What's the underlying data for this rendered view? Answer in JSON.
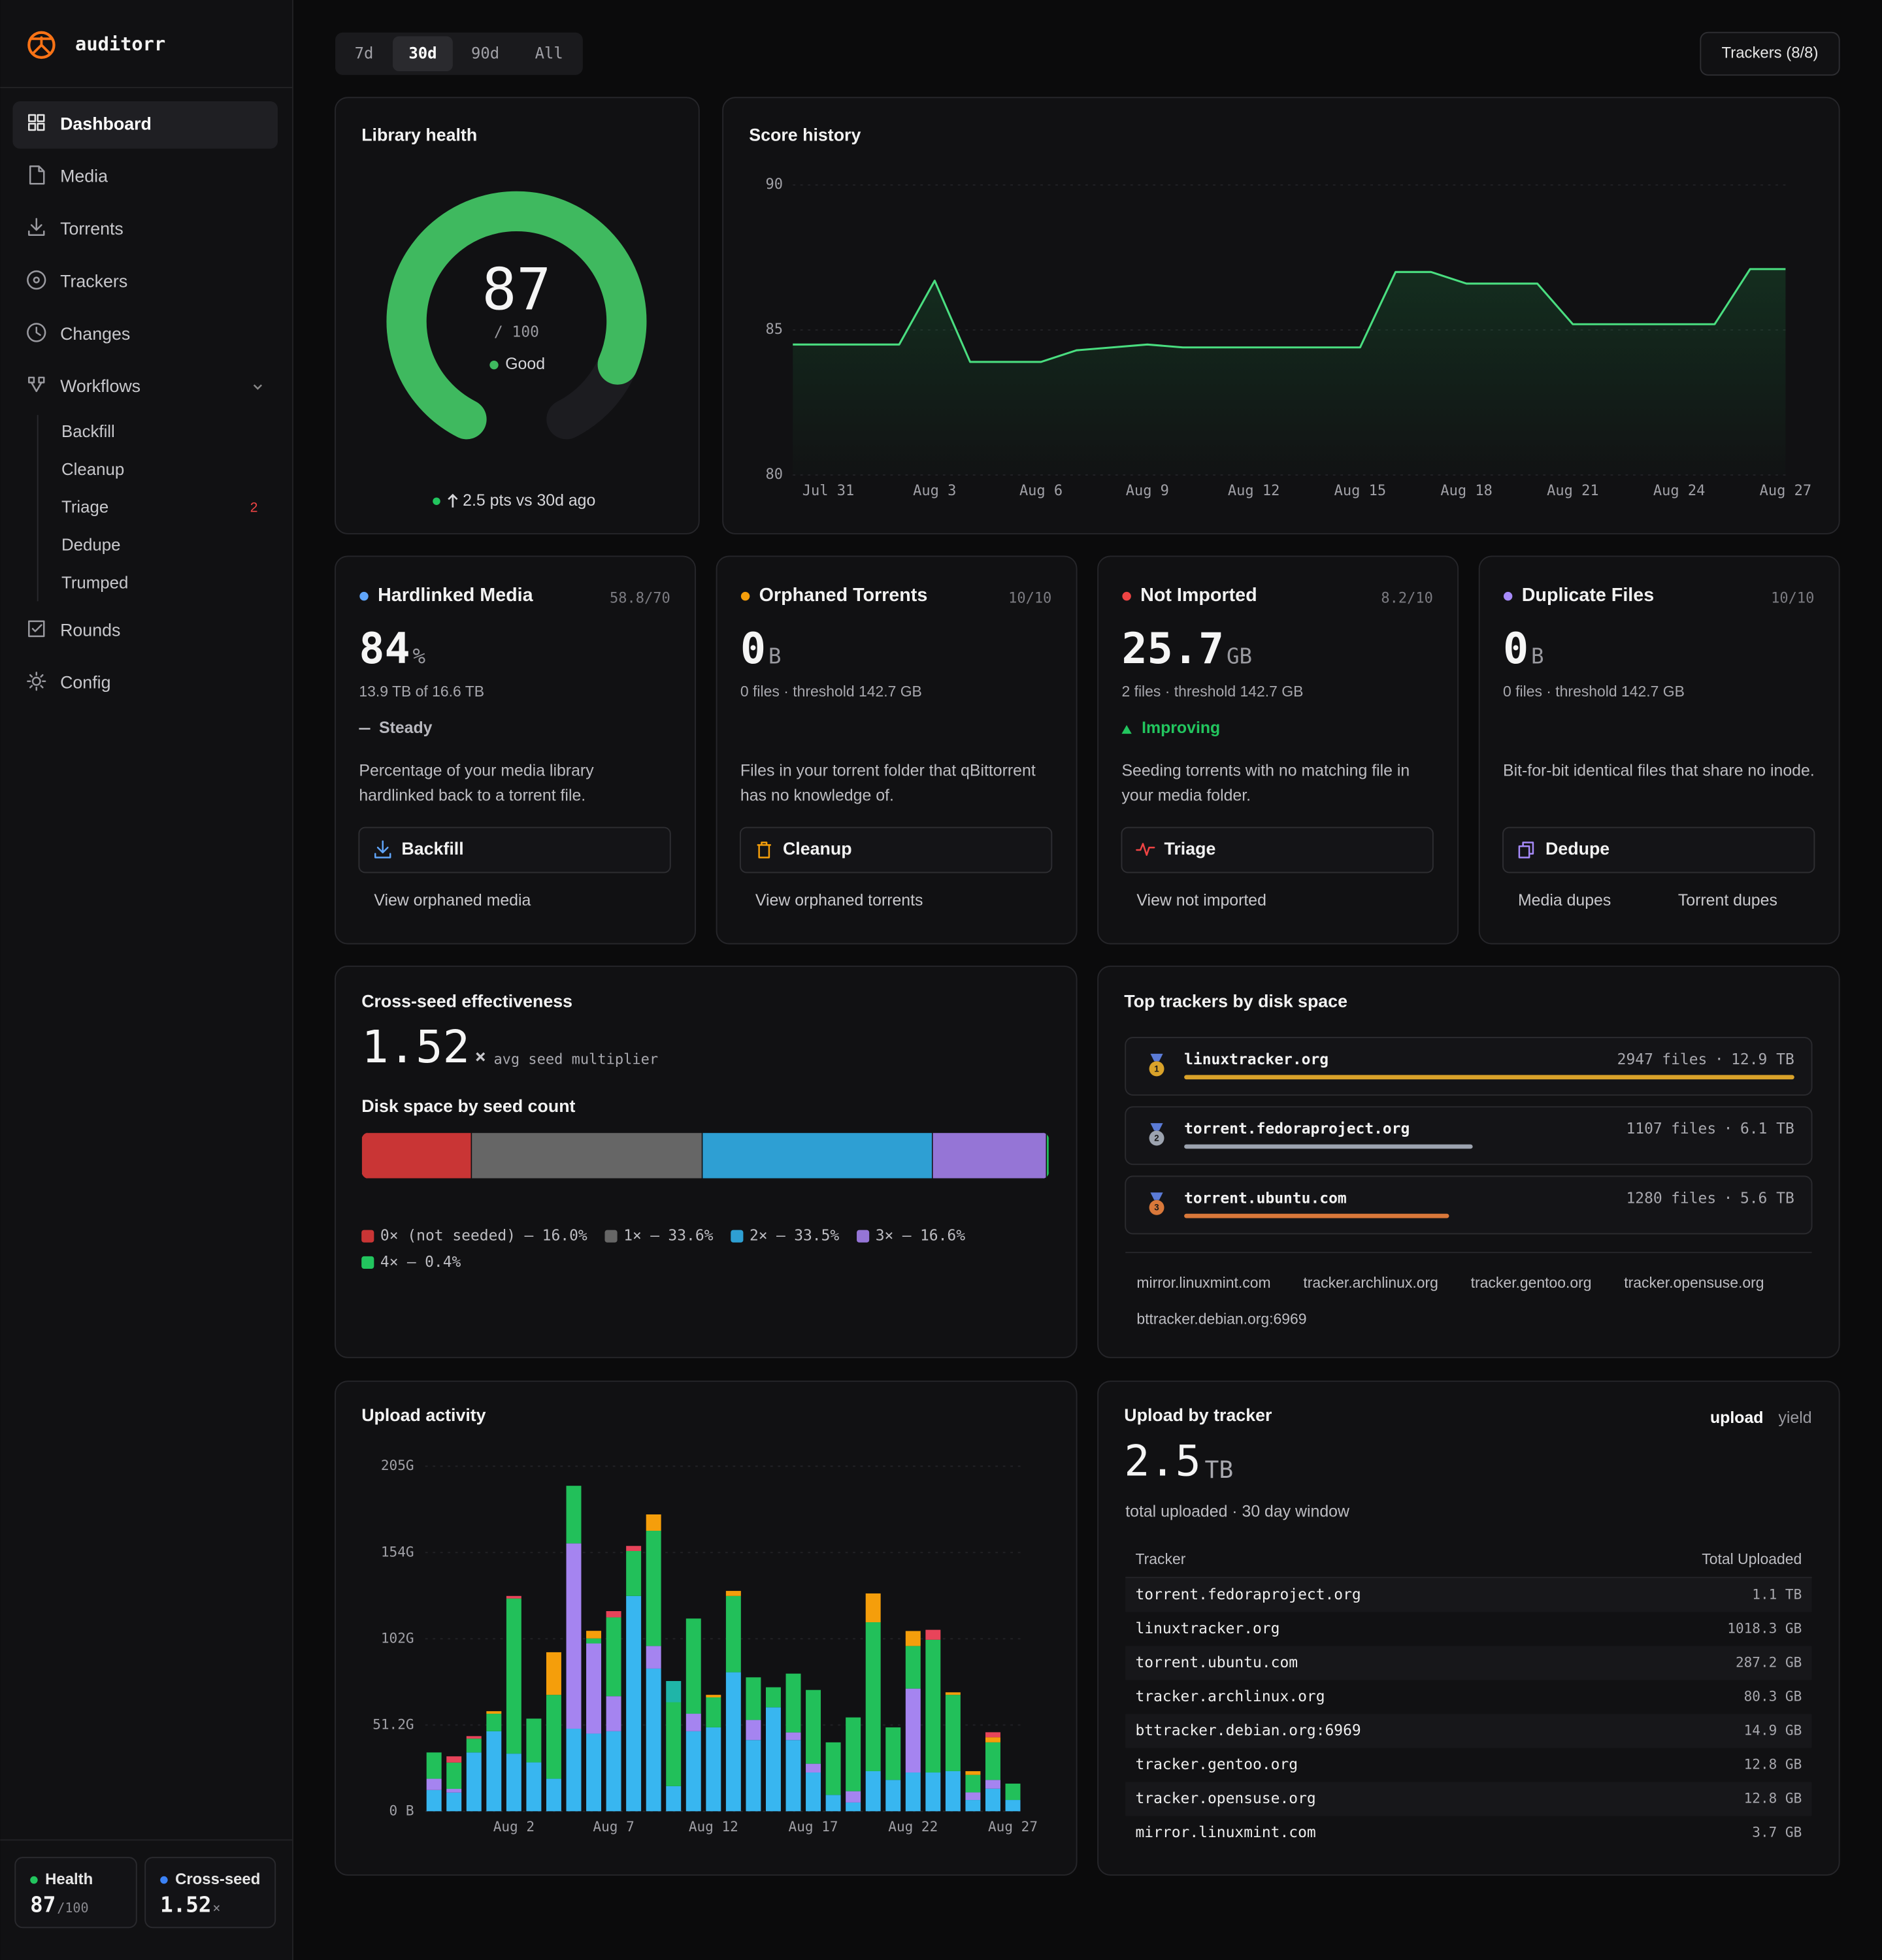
{
  "sidebar": {
    "brand": "auditorr",
    "nav_top": [
      "Dashboard",
      "Media",
      "Torrents",
      "Trackers",
      "Changes",
      "Workflows"
    ],
    "active": "Dashboard",
    "workflows": [
      {
        "label": "Backfill"
      },
      {
        "label": "Cleanup"
      },
      {
        "label": "Triage",
        "badge": 2
      },
      {
        "label": "Dedupe"
      },
      {
        "label": "Trumped"
      }
    ],
    "nav_bottom": [
      "Rounds",
      "Config"
    ],
    "status": [
      {
        "label": "Health",
        "value": 87,
        "suffix": "/100",
        "color": "#22c55e"
      },
      {
        "label": "Cross-seed",
        "value": 1.52,
        "suffix": "×",
        "color": "#3b82f6"
      }
    ]
  },
  "toolbar": {
    "ranges": [
      "7d",
      "30d",
      "90d",
      "All"
    ],
    "active_range": "30d",
    "trackers_button": "Trackers (8/8)"
  },
  "library_health": {
    "title": "Library health",
    "score": 87,
    "max": {
      "value": 100,
      "label": "/ 100"
    },
    "status": "Good",
    "change": "2.5 pts vs 30d ago",
    "color": "#3fb95f"
  },
  "score_history": {
    "type": "line",
    "title": "Score history",
    "color": "#4ade80",
    "categories": [
      null,
      "Jul 31",
      null,
      null,
      "Aug 3",
      null,
      null,
      "Aug 6",
      null,
      null,
      "Aug 9",
      null,
      null,
      "Aug 12",
      null,
      null,
      "Aug 15",
      null,
      null,
      "Aug 18",
      null,
      null,
      "Aug 21",
      null,
      null,
      "Aug 24",
      null,
      null,
      "Aug 27"
    ],
    "values": [
      84.5,
      84.5,
      84.5,
      84.5,
      86.7,
      83.9,
      83.9,
      83.9,
      84.3,
      84.4,
      84.5,
      84.4,
      84.4,
      84.4,
      84.4,
      84.4,
      84.4,
      87.0,
      87.0,
      86.6,
      86.6,
      86.6,
      85.2,
      85.2,
      85.2,
      85.2,
      85.2,
      87.1,
      87.1
    ],
    "ylim": [
      80,
      90
    ],
    "yticks": [
      80,
      85,
      90
    ],
    "grid": true
  },
  "metrics": [
    {
      "name": "Hardlinked Media",
      "color": "#60a5fa",
      "score": "58.8/70",
      "value": 84,
      "unit": "%",
      "detail": "13.9 TB of 16.6 TB",
      "trend": "Steady",
      "trend_dir": "flat",
      "description": "Percentage of your media library hardlinked back to a torrent file.",
      "action": "Backfill",
      "links": [
        "View orphaned media"
      ]
    },
    {
      "name": "Orphaned Torrents",
      "color": "#f59e0b",
      "score": "10/10",
      "value": 0,
      "unit": "B",
      "detail": "0 files · threshold 142.7 GB",
      "description": "Files in your torrent folder that qBittorrent has no knowledge of.",
      "action": "Cleanup",
      "links": [
        "View orphaned torrents"
      ]
    },
    {
      "name": "Not Imported",
      "color": "#ef4444",
      "score": "8.2/10",
      "value": 25.7,
      "unit": "GB",
      "detail": "2 files · threshold 142.7 GB",
      "trend": "Improving",
      "trend_dir": "up",
      "description": "Seeding torrents with no matching file in your media folder.",
      "action": "Triage",
      "links": [
        "View not imported"
      ]
    },
    {
      "name": "Duplicate Files",
      "color": "#a78bfa",
      "score": "10/10",
      "value": 0,
      "unit": "B",
      "detail": "0 files · threshold 142.7 GB",
      "description": "Bit-for-bit identical files that share no inode.",
      "action": "Dedupe",
      "links": [
        "Media dupes",
        "Torrent dupes"
      ]
    }
  ],
  "cross_seed": {
    "title": "Cross-seed effectiveness",
    "value": 1.52,
    "unit": "×",
    "caption": "avg seed multiplier",
    "chart": {
      "type": "stacked-bar",
      "title": "Disk space by seed count",
      "separator": "—",
      "segments": [
        {
          "name": "0× (not seeded)",
          "color": "#c93535",
          "value": 16.0,
          "value_label": "16.0%"
        },
        {
          "name": "1×",
          "color": "#666666",
          "value": 33.6,
          "value_label": "33.6%"
        },
        {
          "name": "2×",
          "color": "#2e9fd3",
          "value": 33.5,
          "value_label": "33.5%"
        },
        {
          "name": "3×",
          "color": "#9575d6",
          "value": 16.6,
          "value_label": "16.6%"
        },
        {
          "name": "4×",
          "color": "#22c55e",
          "value": 0.4,
          "value_label": "0.4%"
        }
      ]
    }
  },
  "top_trackers": {
    "title": "Top trackers by disk space",
    "files_unit": "files",
    "separator": "·",
    "rows": [
      {
        "rank": 1,
        "name": "linuxtracker.org",
        "files": 2947,
        "size": 12.9,
        "size_label": "12.9 TB",
        "color": "#d9a22a"
      },
      {
        "rank": 2,
        "name": "torrent.fedoraproject.org",
        "files": 1107,
        "size": 6.1,
        "size_label": "6.1 TB",
        "color": "#9ca3af"
      },
      {
        "rank": 3,
        "name": "torrent.ubuntu.com",
        "files": 1280,
        "size": 5.6,
        "size_label": "5.6 TB",
        "color": "#d9783a"
      }
    ],
    "others": [
      "mirror.linuxmint.com",
      "tracker.archlinux.org",
      "tracker.gentoo.org",
      "tracker.opensuse.org",
      "bttracker.debian.org:6969"
    ]
  },
  "upload_activity": {
    "type": "bar",
    "stacked": true,
    "title": "Upload activity",
    "grid": true,
    "categories": [
      null,
      null,
      null,
      null,
      "Aug 2",
      null,
      null,
      null,
      null,
      "Aug 7",
      null,
      null,
      null,
      null,
      "Aug 12",
      null,
      null,
      null,
      null,
      "Aug 17",
      null,
      null,
      null,
      null,
      "Aug 22",
      null,
      null,
      null,
      null,
      "Aug 27"
    ],
    "ylim": [
      0,
      204.8
    ],
    "yticks": [
      {
        "value": 0,
        "label": "0 B"
      },
      {
        "value": 51.2,
        "label": "51.2G"
      },
      {
        "value": 102.4,
        "label": "102G"
      },
      {
        "value": 153.6,
        "label": "154G"
      },
      {
        "value": 204.8,
        "label": "205G"
      }
    ],
    "series": [
      {
        "color": "#38b6f0",
        "values": [
          12.6,
          11.1,
          34.9,
          47.5,
          34.2,
          29.0,
          19.3,
          49.0,
          46.1,
          47.5,
          127.8,
          84.7,
          14.9,
          47.5,
          49.8,
          82.5,
          42.3,
          61.7,
          42.3,
          23.0,
          9.7,
          5.2,
          23.8,
          18.6,
          23.0,
          23.0,
          23.8,
          6.7,
          13.4,
          6.7
        ]
      },
      {
        "color": "#a584f0",
        "values": [
          6.7,
          2.2,
          null,
          null,
          null,
          null,
          null,
          110.0,
          53.5,
          20.8,
          null,
          13.4,
          null,
          10.4,
          null,
          null,
          11.9,
          null,
          4.5,
          5.2,
          null,
          6.7,
          null,
          null,
          49.8,
          null,
          null,
          4.5,
          5.2,
          null
        ]
      },
      {
        "color": "#22c05a",
        "values": [
          15.6,
          15.6,
          8.2,
          10.4,
          92.1,
          26.0,
          49.8,
          34.2,
          3.0,
          46.8,
          26.7,
          68.4,
          49.8,
          56.5,
          17.8,
          45.3,
          25.3,
          11.9,
          34.9,
          43.8,
          31.2,
          43.8,
          88.4,
          31.2,
          25.3,
          78.8,
          45.3,
          10.4,
          22.3,
          9.7
        ]
      },
      {
        "color": "#f59e0b",
        "values": [
          null,
          null,
          null,
          1.5,
          null,
          null,
          25.3,
          null,
          4.5,
          null,
          null,
          9.7,
          null,
          null,
          1.5,
          3.0,
          null,
          null,
          null,
          null,
          null,
          null,
          17.1,
          null,
          8.9,
          null,
          1.5,
          2.2,
          3.0,
          null
        ]
      },
      {
        "color": "#e8445a",
        "values": [
          null,
          3.7,
          1.5,
          null,
          1.5,
          null,
          null,
          null,
          null,
          3.7,
          3.0,
          null,
          null,
          null,
          null,
          null,
          null,
          null,
          null,
          null,
          null,
          null,
          null,
          null,
          null,
          5.9,
          null,
          null,
          3.0,
          null
        ]
      },
      {
        "color": "#1fb5a8",
        "values": [
          null,
          null,
          null,
          null,
          null,
          null,
          null,
          null,
          null,
          null,
          null,
          null,
          12.6,
          null,
          null,
          null,
          null,
          null,
          null,
          null,
          null,
          null,
          null,
          null,
          null,
          null,
          null,
          null,
          null,
          null
        ]
      }
    ]
  },
  "upload_by_tracker": {
    "title": "Upload by tracker",
    "modes": [
      "upload",
      "yield"
    ],
    "active_mode": "upload",
    "total": 2.5,
    "total_unit": "TB",
    "caption": "total uploaded · 30 day window",
    "table": {
      "columns": [
        "Tracker",
        "Total Uploaded"
      ],
      "rows": [
        [
          "torrent.fedoraproject.org",
          "1.1 TB"
        ],
        [
          "linuxtracker.org",
          "1018.3 GB"
        ],
        [
          "torrent.ubuntu.com",
          "287.2 GB"
        ],
        [
          "tracker.archlinux.org",
          "80.3 GB"
        ],
        [
          "bttracker.debian.org:6969",
          "14.9 GB"
        ],
        [
          "tracker.gentoo.org",
          "12.8 GB"
        ],
        [
          "tracker.opensuse.org",
          "12.8 GB"
        ],
        [
          "mirror.linuxmint.com",
          "3.7 GB"
        ]
      ]
    }
  }
}
